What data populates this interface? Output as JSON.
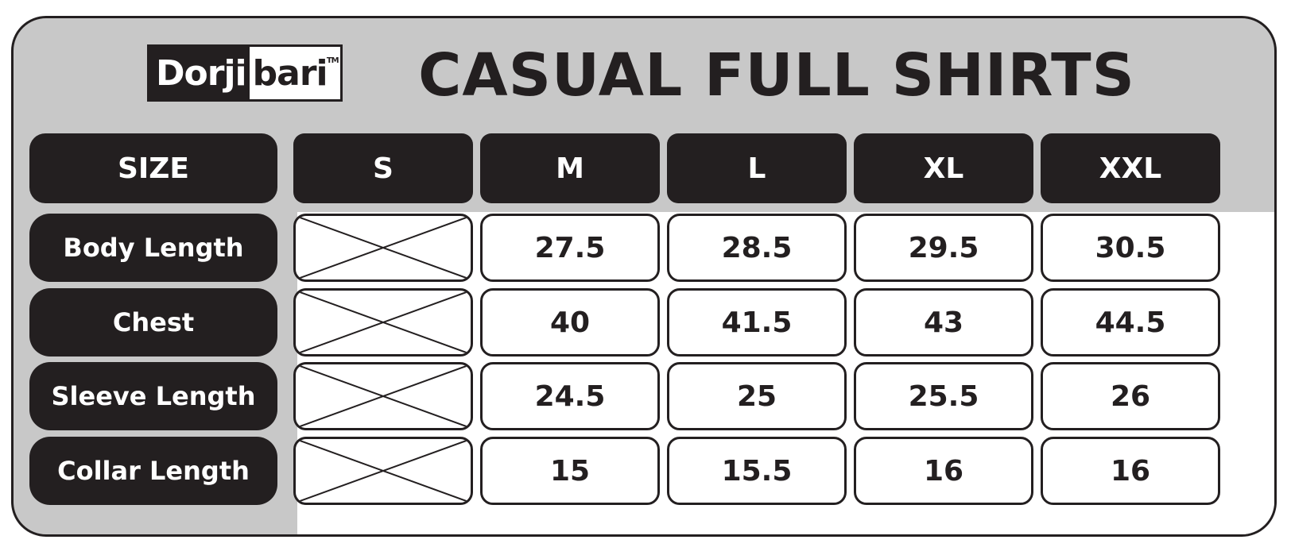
{
  "brand": {
    "part1": "Dorji",
    "part2": "bari",
    "tm": "TM"
  },
  "title": "CASUAL FULL SHIRTS",
  "table": {
    "corner_label": "SIZE",
    "sizes": [
      "S",
      "M",
      "L",
      "XL",
      "XXL"
    ],
    "rows": [
      {
        "label": "Body Length",
        "values": [
          "27.5",
          "28.5",
          "29.5",
          "30.5"
        ]
      },
      {
        "label": "Chest",
        "values": [
          "40",
          "41.5",
          "43",
          "44.5"
        ]
      },
      {
        "label": "Sleeve Length",
        "values": [
          "24.5",
          "25",
          "25.5",
          "26"
        ]
      },
      {
        "label": "Collar Length",
        "values": [
          "15",
          "15.5",
          "16",
          "16"
        ]
      }
    ],
    "unavailable_size": "S",
    "unavailable_mark": "cross-icon"
  },
  "colors": {
    "dark": "#231f20",
    "frame": "#c8c8c8",
    "cell": "#ffffff"
  }
}
